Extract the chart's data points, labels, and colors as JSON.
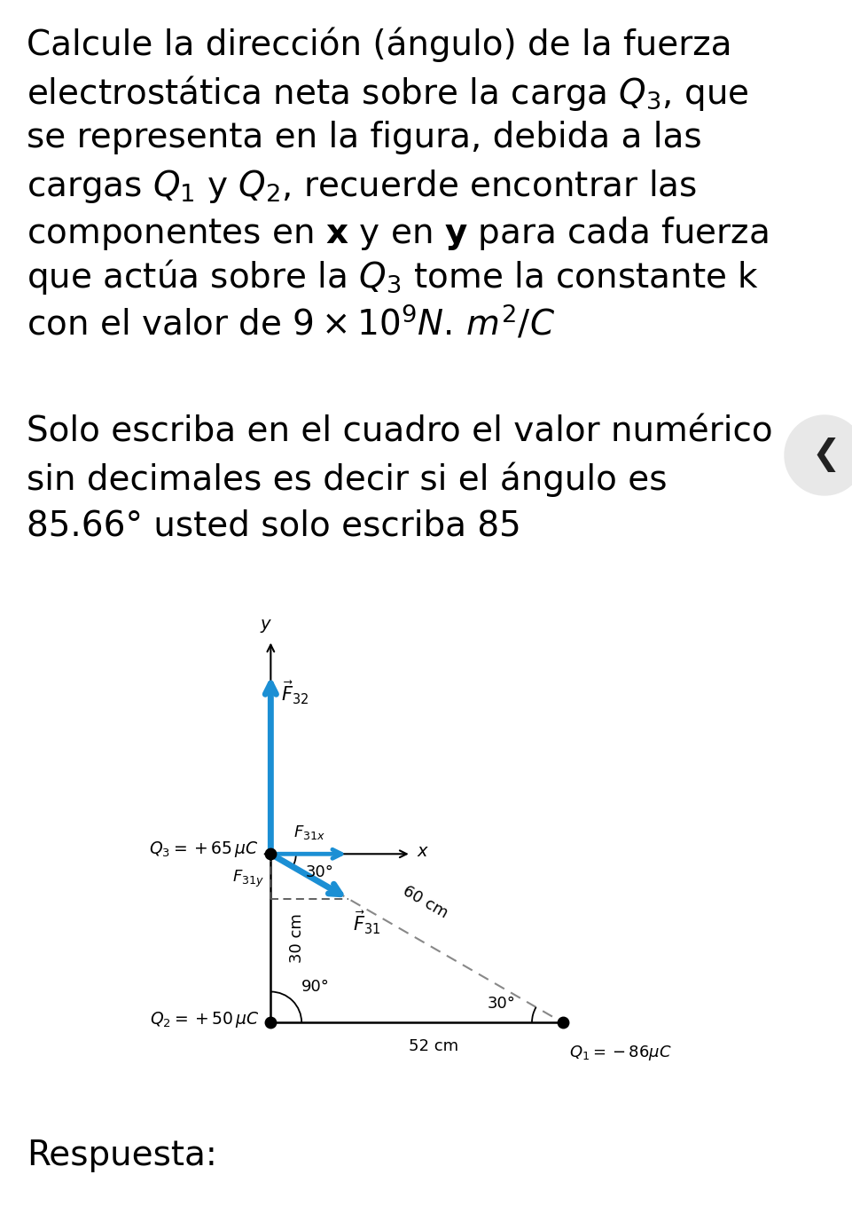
{
  "bg_color": "#ffffff",
  "text_color": "#000000",
  "arrow_color": "#1b8fd4",
  "dashed_color": "#555555",
  "dot_color": "#000000",
  "axis_color": "#000000",
  "chevron_bg": "#e8e8e8",
  "chevron_color": "#222222",
  "q3_label": "$Q_3 = +65\\,\\mu C$",
  "q1_label": "$Q_1 = -86\\mu C$",
  "q2_label": "$Q_2 = +50\\,\\mu C$",
  "f32_label": "$\\vec{F}_{32}$",
  "f31x_label": "$F_{31x}$",
  "f31y_label": "$F_{31y}$",
  "f31_label": "$\\vec{F}_{31}$",
  "y_label": "$y$",
  "x_label": "$x$",
  "dist_30cm": "30 cm",
  "dist_52cm": "52 cm",
  "dist_60cm": "60 cm",
  "angle_30_label": "30°",
  "angle_90_label": "90°",
  "angle_30_q1_label": "30°",
  "respuesta_label": "Respuesta:"
}
